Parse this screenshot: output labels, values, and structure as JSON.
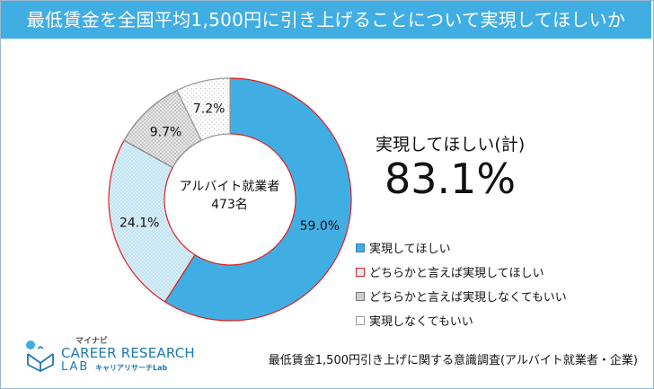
{
  "header": {
    "title": "最低賃金を全国平均1,500円に引き上げることについて実現してほしいか"
  },
  "center": {
    "label": "アルバイト就業者",
    "count": "473名"
  },
  "summary": {
    "label": "実現してほしい(計)",
    "value": "83.1%"
  },
  "footer": {
    "note": "最低賃金1,500円引き上げに関する意識調査(アルバイト就業者・企業)"
  },
  "logo": {
    "small": "マイナビ",
    "main": "CAREER RESEARCH",
    "lab": "LAB",
    "sub": "キャリアリサーチLab"
  },
  "colors": {
    "header": "#41aee3",
    "s1": "#41aee3",
    "s2": "#d5eef8",
    "s3": "#e5e5e5",
    "s4": "#ffffff",
    "accent_border": "#e0201d"
  },
  "chart_data": {
    "type": "pie",
    "style": "donut",
    "title": "最低賃金を全国平均1,500円に引き上げることについて実現してほしいか",
    "series": [
      {
        "name": "実現してほしい",
        "value": 59.0,
        "label": "59.0%"
      },
      {
        "name": "どちらかと言えば実現してほしい",
        "value": 24.1,
        "label": "24.1%"
      },
      {
        "name": "どちらかと言えば実現しなくてもいい",
        "value": 9.7,
        "label": "9.7%"
      },
      {
        "name": "実現しなくてもいい",
        "value": 7.2,
        "label": "7.2%"
      }
    ]
  }
}
